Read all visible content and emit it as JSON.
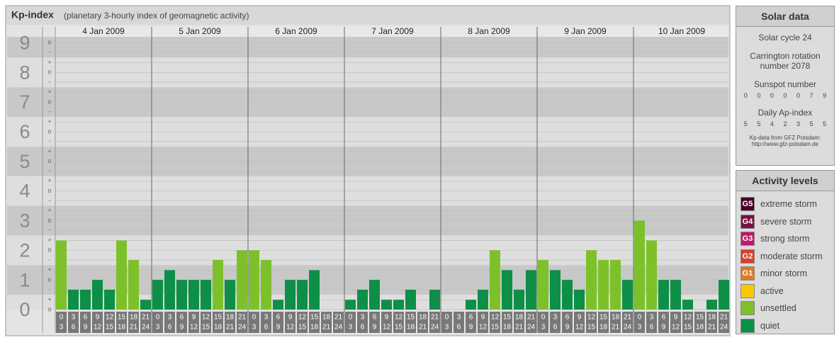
{
  "header": {
    "title": "Kp-index",
    "subtitle": "(planetary 3-hourly index of geomagnetic activity)"
  },
  "chart_data": {
    "type": "bar",
    "days": [
      "4 Jan 2009",
      "5 Jan 2009",
      "6 Jan 2009",
      "7 Jan 2009",
      "8 Jan 2009",
      "9 Jan 2009",
      "10 Jan 2009"
    ],
    "hours": [
      0,
      3,
      6,
      9,
      12,
      15,
      18,
      21,
      24
    ],
    "values": [
      2.33,
      0.67,
      0.67,
      1,
      0.67,
      2.33,
      1.67,
      0.33,
      1,
      1.33,
      1,
      1,
      1,
      1.67,
      1,
      2,
      2,
      1.67,
      0.33,
      1,
      1,
      1.33,
      0,
      0,
      0.33,
      0.67,
      1,
      0.33,
      0.33,
      0.67,
      0,
      0.67,
      0,
      0,
      0.33,
      0.67,
      2,
      1.33,
      0.67,
      1.33,
      1.67,
      1.33,
      1,
      0.67,
      2,
      1.67,
      1.67,
      1,
      3,
      2.33,
      1,
      1,
      0.33,
      0,
      0.33,
      1
    ],
    "colors": [
      "#7dc12a",
      "#0d8f47",
      "#0d8f47",
      "#0d8f47",
      "#0d8f47",
      "#7dc12a",
      "#7dc12a",
      "#0d8f47",
      "#0d8f47",
      "#0d8f47",
      "#0d8f47",
      "#0d8f47",
      "#0d8f47",
      "#7dc12a",
      "#0d8f47",
      "#7dc12a",
      "#7dc12a",
      "#7dc12a",
      "#0d8f47",
      "#0d8f47",
      "#0d8f47",
      "#0d8f47",
      "#0d8f47",
      "#0d8f47",
      "#0d8f47",
      "#0d8f47",
      "#0d8f47",
      "#0d8f47",
      "#0d8f47",
      "#0d8f47",
      "#0d8f47",
      "#0d8f47",
      "#0d8f47",
      "#0d8f47",
      "#0d8f47",
      "#0d8f47",
      "#7dc12a",
      "#0d8f47",
      "#0d8f47",
      "#0d8f47",
      "#7dc12a",
      "#0d8f47",
      "#0d8f47",
      "#0d8f47",
      "#7dc12a",
      "#7dc12a",
      "#7dc12a",
      "#0d8f47",
      "#7dc12a",
      "#7dc12a",
      "#0d8f47",
      "#0d8f47",
      "#0d8f47",
      "#0d8f47",
      "#0d8f47",
      "#0d8f47"
    ],
    "ylim": [
      0,
      9.2
    ],
    "yticks": [
      0,
      1,
      2,
      3,
      4,
      5,
      6,
      7,
      8,
      9
    ],
    "minor_yticks": [
      {
        "value": 0,
        "label": "o"
      },
      {
        "value": 0.33,
        "label": "+"
      },
      {
        "value": 0.67,
        "label": "-"
      },
      {
        "value": 1,
        "label": "o"
      },
      {
        "value": 1.33,
        "label": "+"
      },
      {
        "value": 1.67,
        "label": "-"
      },
      {
        "value": 2,
        "label": "o"
      },
      {
        "value": 2.33,
        "label": "+"
      },
      {
        "value": 2.67,
        "label": "-"
      },
      {
        "value": 3,
        "label": "o"
      },
      {
        "value": 3.33,
        "label": "+"
      },
      {
        "value": 3.67,
        "label": "-"
      },
      {
        "value": 4,
        "label": "o"
      },
      {
        "value": 4.33,
        "label": "+"
      },
      {
        "value": 4.67,
        "label": "-"
      },
      {
        "value": 5,
        "label": "o"
      },
      {
        "value": 5.33,
        "label": "+"
      },
      {
        "value": 5.67,
        "label": "-"
      },
      {
        "value": 6,
        "label": "o"
      },
      {
        "value": 6.33,
        "label": "+"
      },
      {
        "value": 6.67,
        "label": "-"
      },
      {
        "value": 7,
        "label": "o"
      },
      {
        "value": 7.33,
        "label": "+"
      },
      {
        "value": 7.67,
        "label": "-"
      },
      {
        "value": 8,
        "label": "o"
      },
      {
        "value": 8.33,
        "label": "+"
      },
      {
        "value": 8.67,
        "label": "-"
      },
      {
        "value": 9,
        "label": "o"
      }
    ],
    "grid": true
  },
  "solar_data": {
    "title": "Solar data",
    "cycle": "Solar cycle 24",
    "carrington": "Carrington rotation number 2078",
    "sunspot_title": "Sunspot number",
    "sunspot": [
      0,
      0,
      0,
      0,
      0,
      7,
      9
    ],
    "ap_title": "Daily Ap-index",
    "ap": [
      5,
      5,
      4,
      2,
      3,
      5,
      5
    ],
    "source": "Kp-data from GFZ Potsdam:",
    "url": "http://www.gfz-potsdam.de"
  },
  "activity_levels": {
    "title": "Activity levels",
    "levels": [
      {
        "code": "G5",
        "label": "extreme storm",
        "color": "#4a0027"
      },
      {
        "code": "G4",
        "label": "severe storm",
        "color": "#7a1045"
      },
      {
        "code": "G3",
        "label": "strong storm",
        "color": "#c0186a"
      },
      {
        "code": "G2",
        "label": "moderate storm",
        "color": "#d8402a"
      },
      {
        "code": "G1",
        "label": "minor storm",
        "color": "#e07a20"
      },
      {
        "label": "active",
        "color": "#f8c800"
      },
      {
        "label": "unsettled",
        "color": "#7dc12a"
      },
      {
        "label": "quiet",
        "color": "#0d8f47"
      }
    ]
  }
}
